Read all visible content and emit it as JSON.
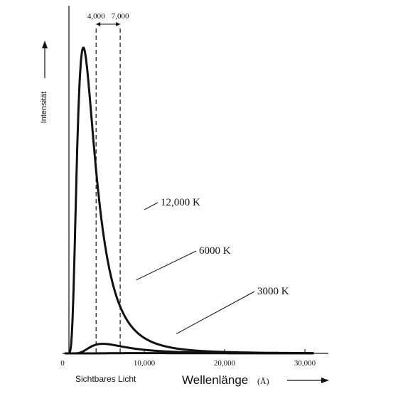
{
  "chart_data": {
    "type": "line",
    "xlabel": "Wellenlänge",
    "xunit": "(Å)",
    "ylabel": "Intensität",
    "xlim": [
      0,
      33000
    ],
    "x_ticks": [
      {
        "value": 0,
        "label": "0"
      },
      {
        "value": 10000,
        "label": "10,000"
      },
      {
        "value": 20000,
        "label": "20,000"
      },
      {
        "value": 30000,
        "label": "30,000"
      }
    ],
    "visible_band": {
      "label": "Sichtbares Licht",
      "start": 4000,
      "end": 7000,
      "start_label": "4,000",
      "end_label": "7,000"
    },
    "series": [
      {
        "name": "12,000 K",
        "temperature": 12000,
        "label_at": [
          10000,
          0.47
        ]
      },
      {
        "name": "6000 K",
        "temperature": 6000,
        "label_at": [
          9000,
          0.24
        ]
      },
      {
        "name": "3000 K",
        "temperature": 3000,
        "label_at": [
          14000,
          0.064
        ]
      }
    ],
    "peak_intensity": 1.0,
    "note": "Relative intensity, no numeric y scale shown"
  }
}
